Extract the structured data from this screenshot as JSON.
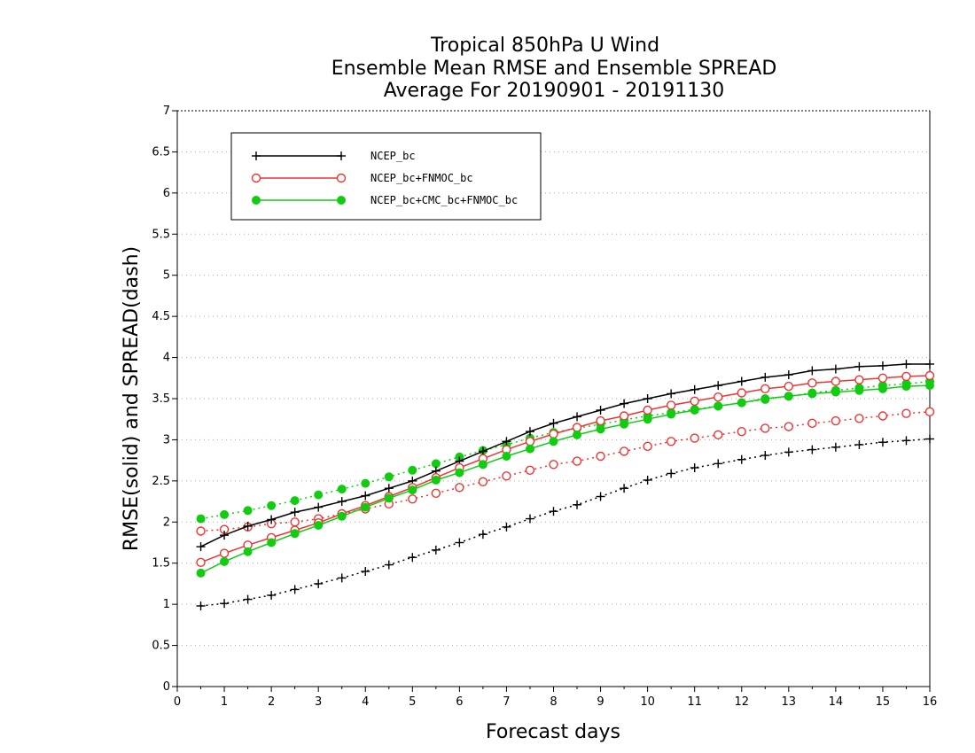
{
  "chart_data": {
    "type": "line",
    "title": [
      "Tropical 850hPa U Wind",
      "Ensemble Mean RMSE and Ensemble SPREAD",
      "Average For 20190901 - 20191130"
    ],
    "xlabel": "Forecast days",
    "ylabel": "RMSE(solid) and SPREAD(dash)",
    "xlim": [
      0,
      16
    ],
    "ylim": [
      0,
      7
    ],
    "xticks": [
      "0",
      "1",
      "2",
      "3",
      "4",
      "5",
      "6",
      "7",
      "8",
      "9",
      "10",
      "11",
      "12",
      "13",
      "14",
      "15",
      "16"
    ],
    "yticks": [
      "0",
      "0.5",
      "1",
      "1.5",
      "2",
      "2.5",
      "3",
      "3.5",
      "4",
      "4.5",
      "5",
      "5.5",
      "6",
      "6.5",
      "7"
    ],
    "grid": true,
    "legend_position": "top-left",
    "x": [
      0.5,
      1,
      1.5,
      2,
      2.5,
      3,
      3.5,
      4,
      4.5,
      5,
      5.5,
      6,
      6.5,
      7,
      7.5,
      8,
      8.5,
      9,
      9.5,
      10,
      10.5,
      11,
      11.5,
      12,
      12.5,
      13,
      13.5,
      14,
      14.5,
      15,
      15.5,
      16
    ],
    "series": [
      {
        "name": "NCEP_bc",
        "color": "#000000",
        "marker": "plus",
        "rmse": [
          1.7,
          1.84,
          1.95,
          2.03,
          2.12,
          2.18,
          2.25,
          2.32,
          2.41,
          2.5,
          2.62,
          2.74,
          2.86,
          2.98,
          3.1,
          3.2,
          3.28,
          3.36,
          3.44,
          3.5,
          3.56,
          3.61,
          3.66,
          3.71,
          3.76,
          3.79,
          3.84,
          3.86,
          3.89,
          3.9,
          3.92,
          3.92
        ],
        "spread": [
          0.98,
          1.01,
          1.06,
          1.11,
          1.18,
          1.25,
          1.32,
          1.4,
          1.48,
          1.57,
          1.66,
          1.75,
          1.85,
          1.94,
          2.04,
          2.13,
          2.21,
          2.31,
          2.41,
          2.51,
          2.59,
          2.66,
          2.71,
          2.76,
          2.81,
          2.85,
          2.88,
          2.91,
          2.94,
          2.97,
          2.99,
          3.01
        ]
      },
      {
        "name": "NCEP_bc+FNMOC_bc",
        "color": "#ee3333",
        "marker": "open-circle",
        "rmse": [
          1.51,
          1.62,
          1.72,
          1.81,
          1.9,
          1.99,
          2.1,
          2.2,
          2.31,
          2.42,
          2.54,
          2.66,
          2.77,
          2.88,
          2.98,
          3.07,
          3.15,
          3.23,
          3.29,
          3.36,
          3.42,
          3.47,
          3.52,
          3.57,
          3.62,
          3.65,
          3.69,
          3.71,
          3.73,
          3.75,
          3.77,
          3.78
        ],
        "spread": [
          1.89,
          1.91,
          1.94,
          1.98,
          2.0,
          2.04,
          2.1,
          2.16,
          2.22,
          2.28,
          2.35,
          2.42,
          2.49,
          2.56,
          2.63,
          2.7,
          2.74,
          2.8,
          2.86,
          2.92,
          2.98,
          3.02,
          3.06,
          3.1,
          3.14,
          3.16,
          3.2,
          3.23,
          3.26,
          3.29,
          3.32,
          3.34
        ]
      },
      {
        "name": "NCEP_bc+CMC_bc+FNMOC_bc",
        "color": "#11cc11",
        "marker": "filled-circle",
        "rmse": [
          1.38,
          1.52,
          1.64,
          1.75,
          1.86,
          1.96,
          2.07,
          2.18,
          2.29,
          2.39,
          2.51,
          2.6,
          2.7,
          2.8,
          2.89,
          2.98,
          3.06,
          3.13,
          3.19,
          3.25,
          3.31,
          3.36,
          3.41,
          3.45,
          3.5,
          3.53,
          3.56,
          3.58,
          3.6,
          3.62,
          3.65,
          3.66
        ],
        "spread": [
          2.04,
          2.09,
          2.14,
          2.2,
          2.26,
          2.33,
          2.4,
          2.47,
          2.55,
          2.63,
          2.71,
          2.79,
          2.87,
          2.94,
          3.02,
          3.09,
          3.14,
          3.19,
          3.24,
          3.29,
          3.33,
          3.37,
          3.41,
          3.45,
          3.49,
          3.53,
          3.57,
          3.6,
          3.63,
          3.66,
          3.68,
          3.71
        ]
      }
    ]
  }
}
